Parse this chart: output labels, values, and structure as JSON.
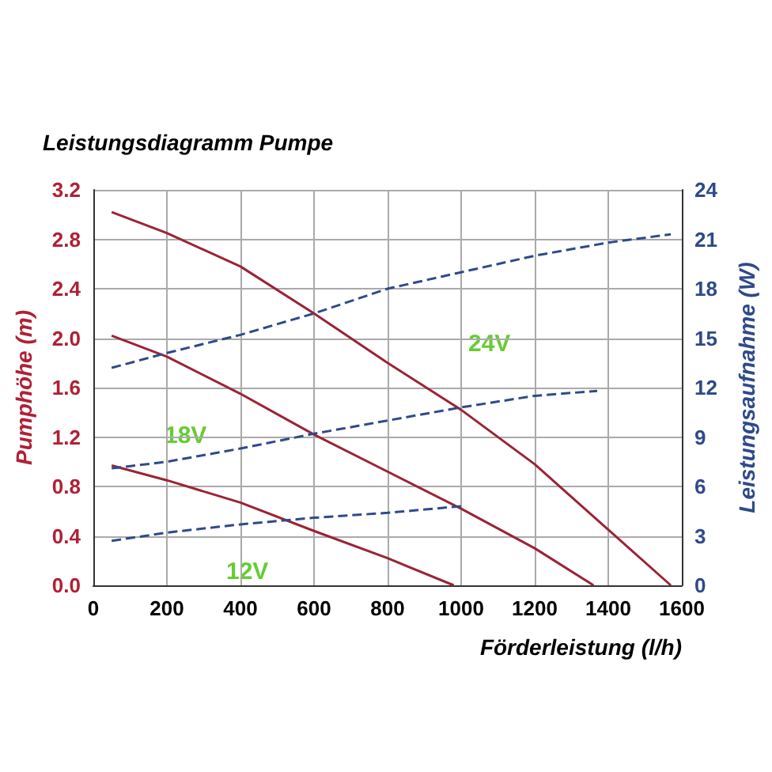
{
  "chart_data": {
    "type": "line",
    "title": "Leistungsdiagramm Pumpe",
    "xlabel": "Förderleistung (l/h)",
    "ylabel": "Pumphöhe (m)",
    "y2label": "Leistungsaufnahme (W)",
    "xlim": [
      0,
      1600
    ],
    "xticks": [
      0,
      200,
      400,
      600,
      800,
      1000,
      1200,
      1400,
      1600
    ],
    "ylim": [
      0,
      3.2
    ],
    "yticks": [
      {
        "value": 0,
        "label": "0.0"
      },
      0.4,
      0.8,
      1.2,
      1.6,
      {
        "value": 2,
        "label": "2.0"
      },
      2.4,
      2.8,
      3.2
    ],
    "y2lim": [
      0,
      24
    ],
    "y2ticks": [
      0,
      3,
      6,
      9,
      12,
      15,
      18,
      21,
      24
    ],
    "grid": true,
    "marker": "none",
    "series": [
      {
        "color": "#9b2335",
        "line_style": "solid",
        "x": [
          50,
          200,
          400,
          600,
          800,
          1000,
          1200,
          1400,
          1570
        ],
        "values": [
          3.02,
          2.85,
          2.58,
          2.2,
          1.8,
          1.42,
          0.98,
          0.45,
          0
        ]
      },
      {
        "color": "#9b2335",
        "line_style": "solid",
        "x": [
          50,
          200,
          400,
          600,
          800,
          1000,
          1200,
          1360
        ],
        "values": [
          2.02,
          1.85,
          1.55,
          1.22,
          0.92,
          0.62,
          0.3,
          0
        ]
      },
      {
        "color": "#9b2335",
        "line_style": "solid",
        "x": [
          50,
          200,
          400,
          600,
          800,
          980
        ],
        "values": [
          0.97,
          0.85,
          0.67,
          0.44,
          0.22,
          0
        ]
      },
      {
        "color": "#2f4a8a",
        "line_style": "dashed",
        "axis": "y2",
        "x": [
          50,
          200,
          400,
          600,
          800,
          1000,
          1200,
          1400,
          1570
        ],
        "values": [
          13.2,
          14.1,
          15.2,
          16.5,
          18,
          19,
          20,
          20.8,
          21.3
        ]
      },
      {
        "color": "#2f4a8a",
        "line_style": "dashed",
        "axis": "y2",
        "x": [
          50,
          200,
          400,
          600,
          800,
          1000,
          1200,
          1370
        ],
        "values": [
          7.1,
          7.5,
          8.3,
          9.2,
          10,
          10.8,
          11.5,
          11.8
        ]
      },
      {
        "color": "#2f4a8a",
        "line_style": "dashed",
        "axis": "y2",
        "x": [
          50,
          200,
          400,
          600,
          800,
          1000
        ],
        "values": [
          2.7,
          3.2,
          3.7,
          4.1,
          4.4,
          4.8
        ]
      }
    ],
    "annotations": [
      "24V",
      "18V",
      "12V"
    ]
  }
}
